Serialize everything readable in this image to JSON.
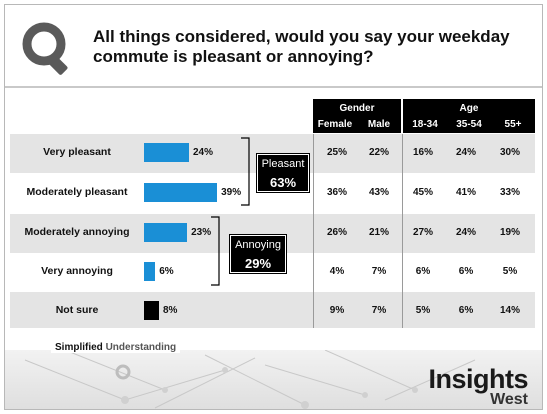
{
  "title": "All things considered, would you say your weekday commute is pleasant or annoying?",
  "headers": {
    "gender_group": "Gender",
    "age_group": "Age",
    "columns": [
      "Female",
      "Male",
      "18-34",
      "35-54",
      "55+"
    ]
  },
  "groups": {
    "pleasant": {
      "label": "Pleasant",
      "value": "63%"
    },
    "annoying": {
      "label": "Annoying",
      "value": "29%"
    }
  },
  "footer": {
    "tagline_1": "Simplified",
    "tagline_2": "Understanding",
    "brand_1": "Insights",
    "brand_2": "West"
  },
  "colors": {
    "bar_blue": "#1a8fd6",
    "bar_black": "#000000",
    "band_gray": "#e4e4e4"
  },
  "chart_data": {
    "type": "bar",
    "title": "All things considered, would you say your weekday commute is pleasant or annoying?",
    "orientation": "horizontal",
    "categories": [
      "Very pleasant",
      "Moderately pleasant",
      "Moderately annoying",
      "Very annoying",
      "Not sure"
    ],
    "values": [
      24,
      39,
      23,
      6,
      8
    ],
    "value_labels": [
      "24%",
      "39%",
      "23%",
      "6%",
      "8%"
    ],
    "bar_colors": [
      "#1a8fd6",
      "#1a8fd6",
      "#1a8fd6",
      "#1a8fd6",
      "#000000"
    ],
    "xlim": [
      0,
      40
    ],
    "grid": false,
    "breakdown": {
      "columns": [
        "Female",
        "Male",
        "18-34",
        "35-54",
        "55+"
      ],
      "rows": [
        [
          "25%",
          "22%",
          "16%",
          "24%",
          "30%"
        ],
        [
          "36%",
          "43%",
          "45%",
          "41%",
          "33%"
        ],
        [
          "26%",
          "21%",
          "27%",
          "24%",
          "19%"
        ],
        [
          "4%",
          "7%",
          "6%",
          "6%",
          "5%"
        ],
        [
          "9%",
          "7%",
          "5%",
          "6%",
          "14%"
        ]
      ]
    }
  }
}
